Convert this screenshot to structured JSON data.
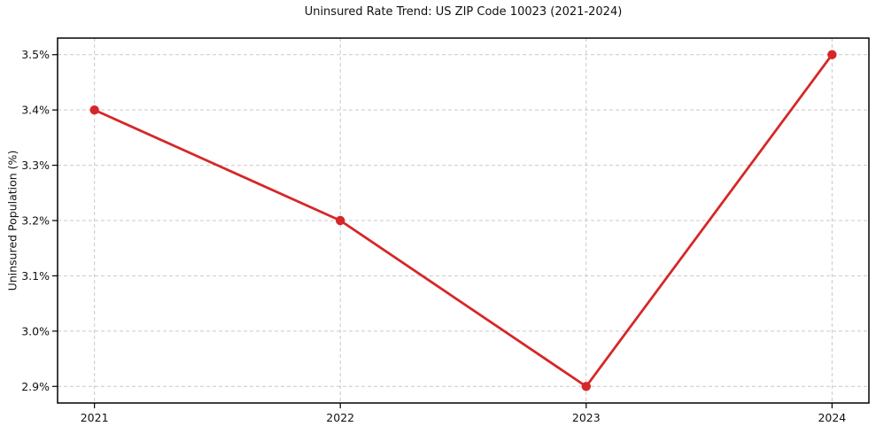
{
  "chart_data": {
    "type": "line",
    "title": "Uninsured Rate Trend: US ZIP Code 10023 (2021-2024)",
    "xlabel": "",
    "ylabel": "Uninsured Population (%)",
    "x": [
      2021,
      2022,
      2023,
      2024
    ],
    "xtick_labels": [
      "2021",
      "2022",
      "2023",
      "2024"
    ],
    "series": [
      {
        "name": "Uninsured Rate",
        "values": [
          3.4,
          3.2,
          2.9,
          3.5
        ]
      }
    ],
    "yticks": [
      2.9,
      3.0,
      3.1,
      3.2,
      3.3,
      3.4,
      3.5
    ],
    "ytick_labels": [
      "2.9%",
      "3.0%",
      "3.1%",
      "3.2%",
      "3.3%",
      "3.4%",
      "3.5%"
    ],
    "xlim": [
      2020.85,
      2024.15
    ],
    "ylim": [
      2.87,
      3.53
    ],
    "grid": true,
    "legend": "none",
    "colors": {
      "line": "#d62728",
      "marker": "#d62728",
      "grid": "#c9c9c9",
      "spine": "#000000",
      "tick_text": "#111111",
      "background": "#ffffff"
    }
  }
}
